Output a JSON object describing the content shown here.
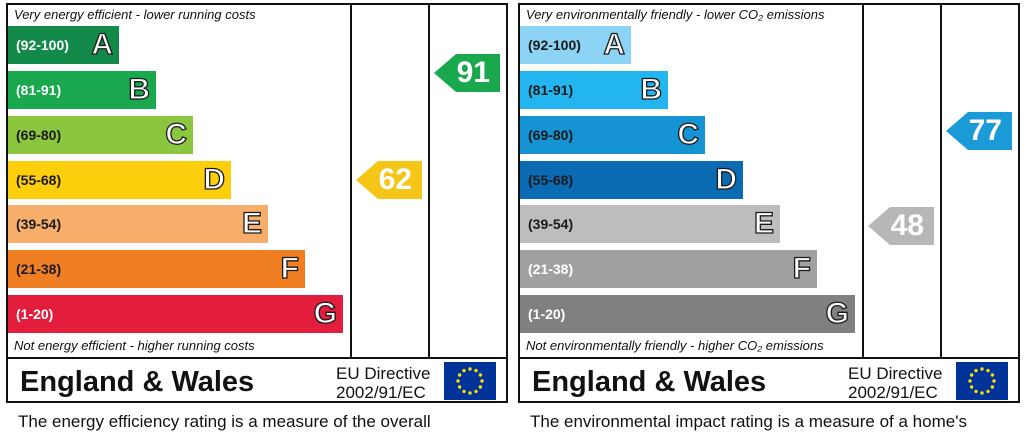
{
  "energy": {
    "top_caption": "Very energy efficient - lower running costs",
    "bottom_caption": "Not energy efficient - higher running costs",
    "bands": [
      {
        "range": "(92-100)",
        "letter": "A",
        "color": "#138a4a"
      },
      {
        "range": "(81-91)",
        "letter": "B",
        "color": "#1aa84f"
      },
      {
        "range": "(69-80)",
        "letter": "C",
        "color": "#8cc63f"
      },
      {
        "range": "(55-68)",
        "letter": "D",
        "color": "#fdce0b"
      },
      {
        "range": "(39-54)",
        "letter": "E",
        "color": "#f6ae6a"
      },
      {
        "range": "(21-38)",
        "letter": "F",
        "color": "#f07e23"
      },
      {
        "range": "(1-20)",
        "letter": "G",
        "color": "#e31d3c"
      }
    ],
    "current": {
      "value": "62",
      "color": "#f5c518"
    },
    "potential": {
      "value": "91",
      "color": "#1aa84f"
    },
    "region": "England & Wales",
    "directive_line1": "EU Directive",
    "directive_line2": "2002/91/EC",
    "footer": "The energy efficiency rating is a measure of the overall"
  },
  "environment": {
    "top_caption": "Very environmentally friendly - lower CO₂ emissions",
    "bottom_caption": "Not environmentally friendly - higher CO₂ emissions",
    "bands": [
      {
        "range": "(92-100)",
        "letter": "A",
        "color": "#8dd3f5"
      },
      {
        "range": "(81-91)",
        "letter": "B",
        "color": "#23b5ef"
      },
      {
        "range": "(69-80)",
        "letter": "C",
        "color": "#1593d3"
      },
      {
        "range": "(55-68)",
        "letter": "D",
        "color": "#0a6bb3"
      },
      {
        "range": "(39-54)",
        "letter": "E",
        "color": "#bdbdbd"
      },
      {
        "range": "(21-38)",
        "letter": "F",
        "color": "#a0a0a0"
      },
      {
        "range": "(1-20)",
        "letter": "G",
        "color": "#808080"
      }
    ],
    "current": {
      "value": "48",
      "color": "#b7b7b7"
    },
    "potential": {
      "value": "77",
      "color": "#1a9ad6"
    },
    "region": "England & Wales",
    "directive_line1": "EU Directive",
    "directive_line2": "2002/91/EC",
    "footer": "The environmental impact rating is a measure of a home's"
  }
}
